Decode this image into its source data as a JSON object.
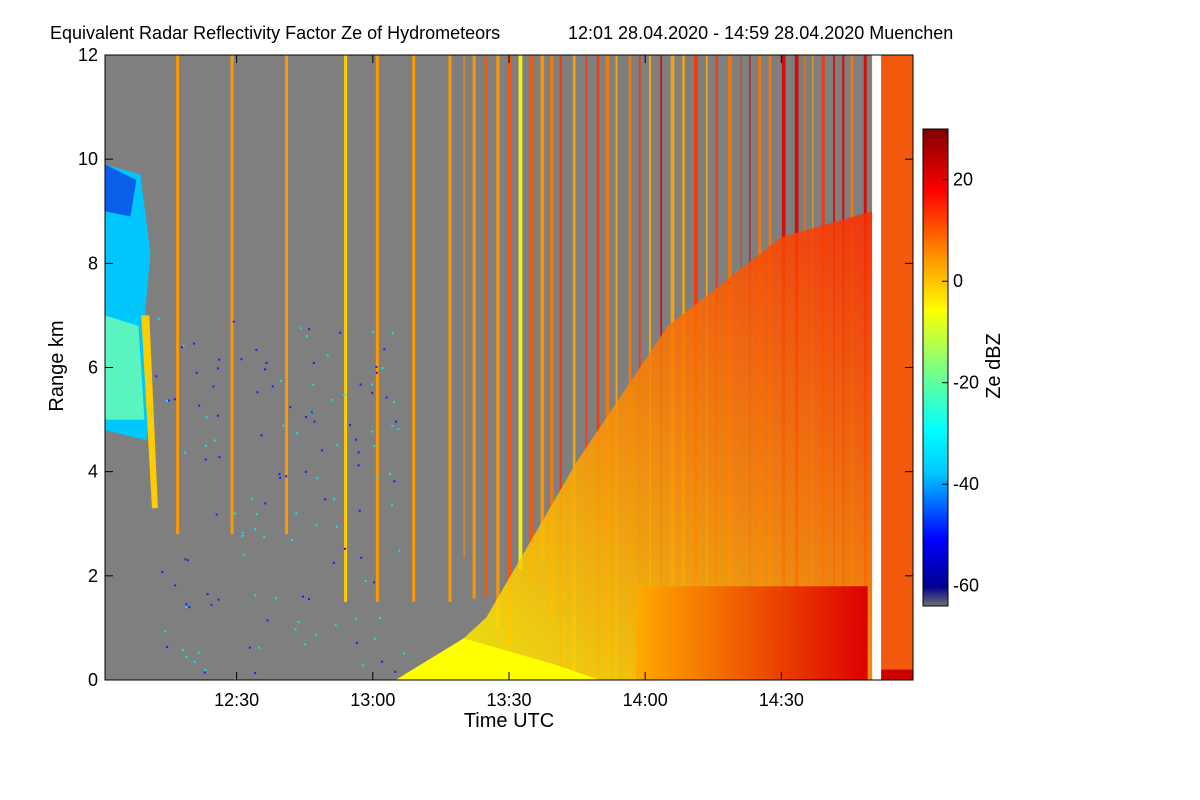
{
  "chart_data": {
    "type": "heatmap",
    "title": "Equivalent Radar Reflectivity Factor Ze of Hydrometeors",
    "subtitle": "12:01 28.04.2020 - 14:59 28.04.2020 Muenchen",
    "xlabel": "Time UTC",
    "ylabel": "Range km",
    "x_ticks": [
      "12:30",
      "13:00",
      "13:30",
      "14:00",
      "14:30"
    ],
    "x_tick_values_min": [
      30,
      60,
      90,
      120,
      150
    ],
    "xlim_min": [
      1,
      179
    ],
    "y_ticks": [
      "0",
      "2",
      "4",
      "6",
      "8",
      "10",
      "12"
    ],
    "y_tick_values": [
      0,
      2,
      4,
      6,
      8,
      10,
      12
    ],
    "ylim": [
      0,
      12
    ],
    "colorbar": {
      "label": "Ze dBZ",
      "ticks": [
        "20",
        "0",
        "-20",
        "-40",
        "-60"
      ],
      "tick_values": [
        20,
        0,
        -20,
        -40,
        -60
      ],
      "range": [
        -64,
        30
      ],
      "colormap": "jet"
    },
    "background_color": "#7f7f7f",
    "features": [
      {
        "kind": "cloud",
        "time_min": [
          1,
          11
        ],
        "range_km": [
          4.6,
          9.9
        ],
        "ze_dbz": [
          -40,
          -20
        ]
      },
      {
        "kind": "fall_streak",
        "time_min": [
          9,
          12
        ],
        "range_km": [
          3.3,
          7.0
        ],
        "ze_dbz": [
          -5,
          5
        ]
      },
      {
        "kind": "precipitation_streaks",
        "time_min": [
          12,
          170
        ],
        "ze_dbz": [
          -30,
          20
        ]
      },
      {
        "kind": "intensifying_rain",
        "time_min": [
          110,
          169
        ],
        "range_km": [
          0,
          12
        ],
        "ze_dbz": [
          10,
          25
        ]
      },
      {
        "kind": "data_gap",
        "time_min": [
          170,
          172
        ]
      }
    ]
  }
}
